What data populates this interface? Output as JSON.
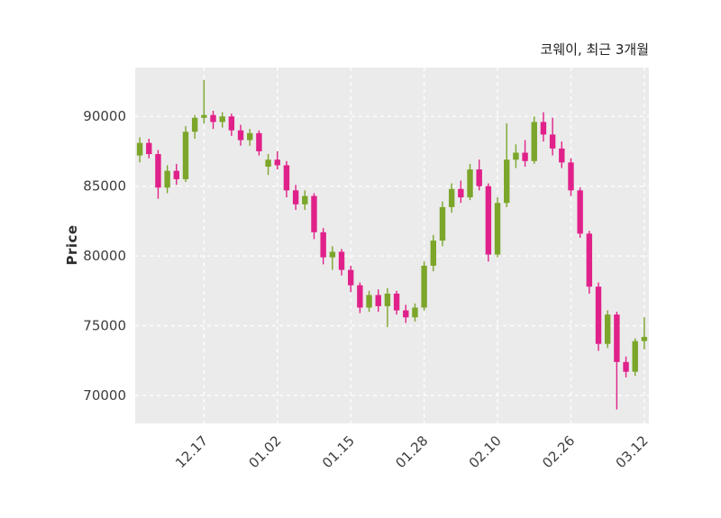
{
  "chart_data": {
    "type": "candlestick",
    "title": "코웨이, 최근 3개월",
    "ylabel": "Price",
    "ylim": [
      68000,
      93500
    ],
    "yticks": [
      70000,
      75000,
      80000,
      85000,
      90000
    ],
    "x_tick_labels": [
      "12.17",
      "01.02",
      "01.15",
      "01.28",
      "02.10",
      "02.26",
      "03.12"
    ],
    "x_tick_indices": [
      7,
      15,
      23,
      31,
      39,
      47,
      55
    ],
    "colors": {
      "up": "#7BA62A",
      "down": "#E0218A",
      "plot_bg": "#EBEBEB",
      "grid": "#FFFFFF",
      "tick_text": "#3d3d3d"
    },
    "legend": "none",
    "grid": "dashed",
    "candle_format": [
      "open",
      "high",
      "low",
      "close"
    ],
    "candles": [
      [
        87200,
        88500,
        86700,
        88100
      ],
      [
        88100,
        88400,
        87000,
        87300
      ],
      [
        87300,
        87600,
        84100,
        84900
      ],
      [
        84900,
        86500,
        84500,
        86100
      ],
      [
        86100,
        86600,
        85100,
        85500
      ],
      [
        85500,
        89300,
        85300,
        88900
      ],
      [
        88900,
        90100,
        88400,
        89900
      ],
      [
        89900,
        92600,
        89500,
        90100
      ],
      [
        90100,
        90400,
        89100,
        89600
      ],
      [
        89600,
        90300,
        89200,
        90000
      ],
      [
        90000,
        90200,
        88600,
        89000
      ],
      [
        89000,
        89400,
        87900,
        88300
      ],
      [
        88300,
        89100,
        87900,
        88800
      ],
      [
        88800,
        89000,
        87200,
        87500
      ],
      [
        86400,
        87300,
        85800,
        86900
      ],
      [
        86900,
        87500,
        86200,
        86500
      ],
      [
        86500,
        86800,
        84200,
        84700
      ],
      [
        84700,
        85100,
        83300,
        83700
      ],
      [
        83700,
        84700,
        83300,
        84300
      ],
      [
        84300,
        84500,
        81200,
        81700
      ],
      [
        81700,
        82000,
        79400,
        79900
      ],
      [
        79900,
        80700,
        79000,
        80300
      ],
      [
        80300,
        80500,
        78600,
        79000
      ],
      [
        79000,
        79300,
        77400,
        77900
      ],
      [
        77900,
        78100,
        75900,
        76300
      ],
      [
        76300,
        77500,
        76000,
        77200
      ],
      [
        77200,
        77600,
        76000,
        76400
      ],
      [
        76400,
        77700,
        74900,
        77300
      ],
      [
        77300,
        77500,
        75800,
        76100
      ],
      [
        76100,
        76500,
        75200,
        75600
      ],
      [
        75600,
        76600,
        75300,
        76300
      ],
      [
        76300,
        79600,
        76100,
        79300
      ],
      [
        79300,
        81500,
        78900,
        81100
      ],
      [
        81100,
        83900,
        80700,
        83500
      ],
      [
        83500,
        85200,
        83100,
        84800
      ],
      [
        84800,
        85400,
        83800,
        84200
      ],
      [
        84200,
        86600,
        84000,
        86200
      ],
      [
        86200,
        86900,
        84700,
        85000
      ],
      [
        85000,
        85200,
        79600,
        80100
      ],
      [
        80100,
        84200,
        79900,
        83800
      ],
      [
        83800,
        89500,
        83500,
        86900
      ],
      [
        86900,
        88000,
        86300,
        87400
      ],
      [
        87400,
        88300,
        86400,
        86800
      ],
      [
        86800,
        90000,
        86600,
        89600
      ],
      [
        89600,
        90300,
        88200,
        88700
      ],
      [
        88700,
        89900,
        87200,
        87700
      ],
      [
        87700,
        88200,
        86300,
        86700
      ],
      [
        86700,
        87000,
        84300,
        84700
      ],
      [
        84700,
        84900,
        81300,
        81600
      ],
      [
        81600,
        81800,
        77300,
        77800
      ],
      [
        77800,
        78100,
        73200,
        73700
      ],
      [
        73700,
        76100,
        73400,
        75800
      ],
      [
        75800,
        76000,
        69000,
        72400
      ],
      [
        72400,
        72800,
        71300,
        71700
      ],
      [
        71700,
        74100,
        71400,
        73900
      ],
      [
        73900,
        75600,
        73300,
        74200
      ]
    ]
  }
}
